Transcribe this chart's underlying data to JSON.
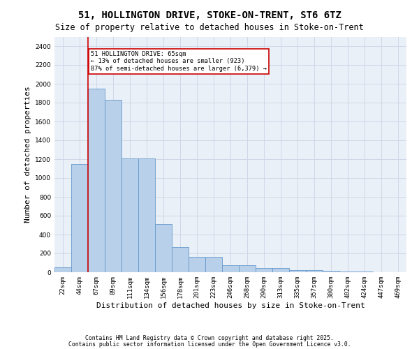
{
  "title1": "51, HOLLINGTON DRIVE, STOKE-ON-TRENT, ST6 6TZ",
  "title2": "Size of property relative to detached houses in Stoke-on-Trent",
  "xlabel": "Distribution of detached houses by size in Stoke-on-Trent",
  "ylabel": "Number of detached properties",
  "categories": [
    "22sqm",
    "44sqm",
    "67sqm",
    "89sqm",
    "111sqm",
    "134sqm",
    "156sqm",
    "178sqm",
    "201sqm",
    "223sqm",
    "246sqm",
    "268sqm",
    "290sqm",
    "313sqm",
    "335sqm",
    "357sqm",
    "380sqm",
    "402sqm",
    "424sqm",
    "447sqm",
    "469sqm"
  ],
  "values": [
    50,
    1150,
    1950,
    1830,
    1210,
    1210,
    510,
    270,
    160,
    160,
    75,
    75,
    45,
    45,
    20,
    20,
    15,
    10,
    5,
    3,
    2
  ],
  "bar_color": "#b8d0ea",
  "bar_edge_color": "#6699cc",
  "annotation_text": "51 HOLLINGTON DRIVE: 65sqm\n← 13% of detached houses are smaller (923)\n87% of semi-detached houses are larger (6,379) →",
  "annotation_box_color": "#ffffff",
  "annotation_box_edge_color": "#cc0000",
  "ylim": [
    0,
    2500
  ],
  "yticks": [
    0,
    200,
    400,
    600,
    800,
    1000,
    1200,
    1400,
    1600,
    1800,
    2000,
    2200,
    2400
  ],
  "grid_color": "#d0d8e8",
  "bg_color": "#eaf0f8",
  "footer1": "Contains HM Land Registry data © Crown copyright and database right 2025.",
  "footer2": "Contains public sector information licensed under the Open Government Licence v3.0.",
  "red_line_color": "#cc0000",
  "title_fontsize": 10,
  "subtitle_fontsize": 8.5,
  "tick_fontsize": 6.5,
  "label_fontsize": 8,
  "footer_fontsize": 5.8
}
